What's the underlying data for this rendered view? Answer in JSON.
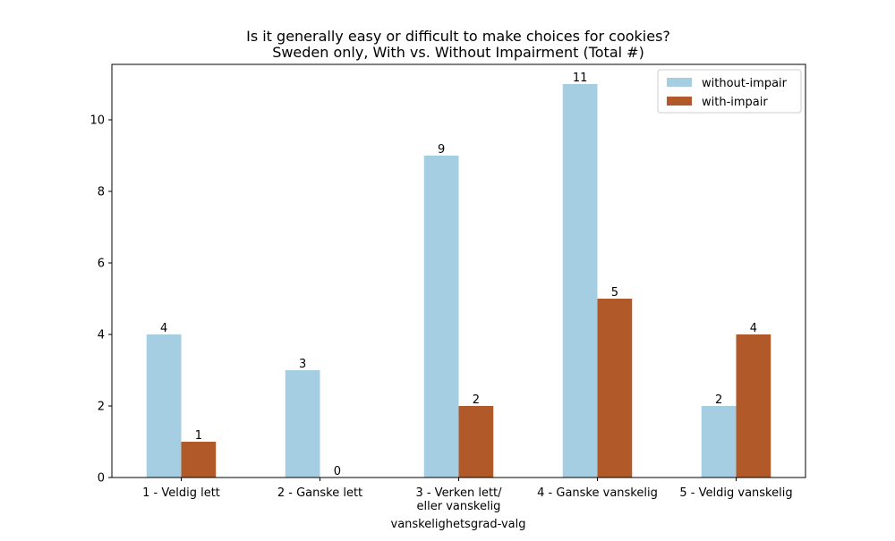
{
  "chart_data": {
    "type": "bar",
    "title_line1": "Is it generally easy or difficult to make choices for cookies?",
    "title_line2": "Sweden only, With vs. Without Impairment (Total #)",
    "xlabel": "vanskelighetsgrad-valg",
    "ylabel": "",
    "categories": [
      [
        "1 - Veldig lett"
      ],
      [
        "2 - Ganske lett"
      ],
      [
        "3 - Verken lett/",
        "eller vanskelig"
      ],
      [
        "4 - Ganske vanskelig"
      ],
      [
        "5 - Veldig vanskelig"
      ]
    ],
    "series": [
      {
        "name": "without-impair",
        "color": "#a6cee3",
        "values": [
          4,
          3,
          9,
          11,
          2
        ]
      },
      {
        "name": "with-impair",
        "color": "#b15928",
        "values": [
          1,
          0,
          2,
          5,
          4
        ]
      }
    ],
    "ylim": [
      0,
      11.55
    ],
    "yticks": [
      0,
      2,
      4,
      6,
      8,
      10
    ],
    "grid": false,
    "legend_position": "top-right"
  }
}
